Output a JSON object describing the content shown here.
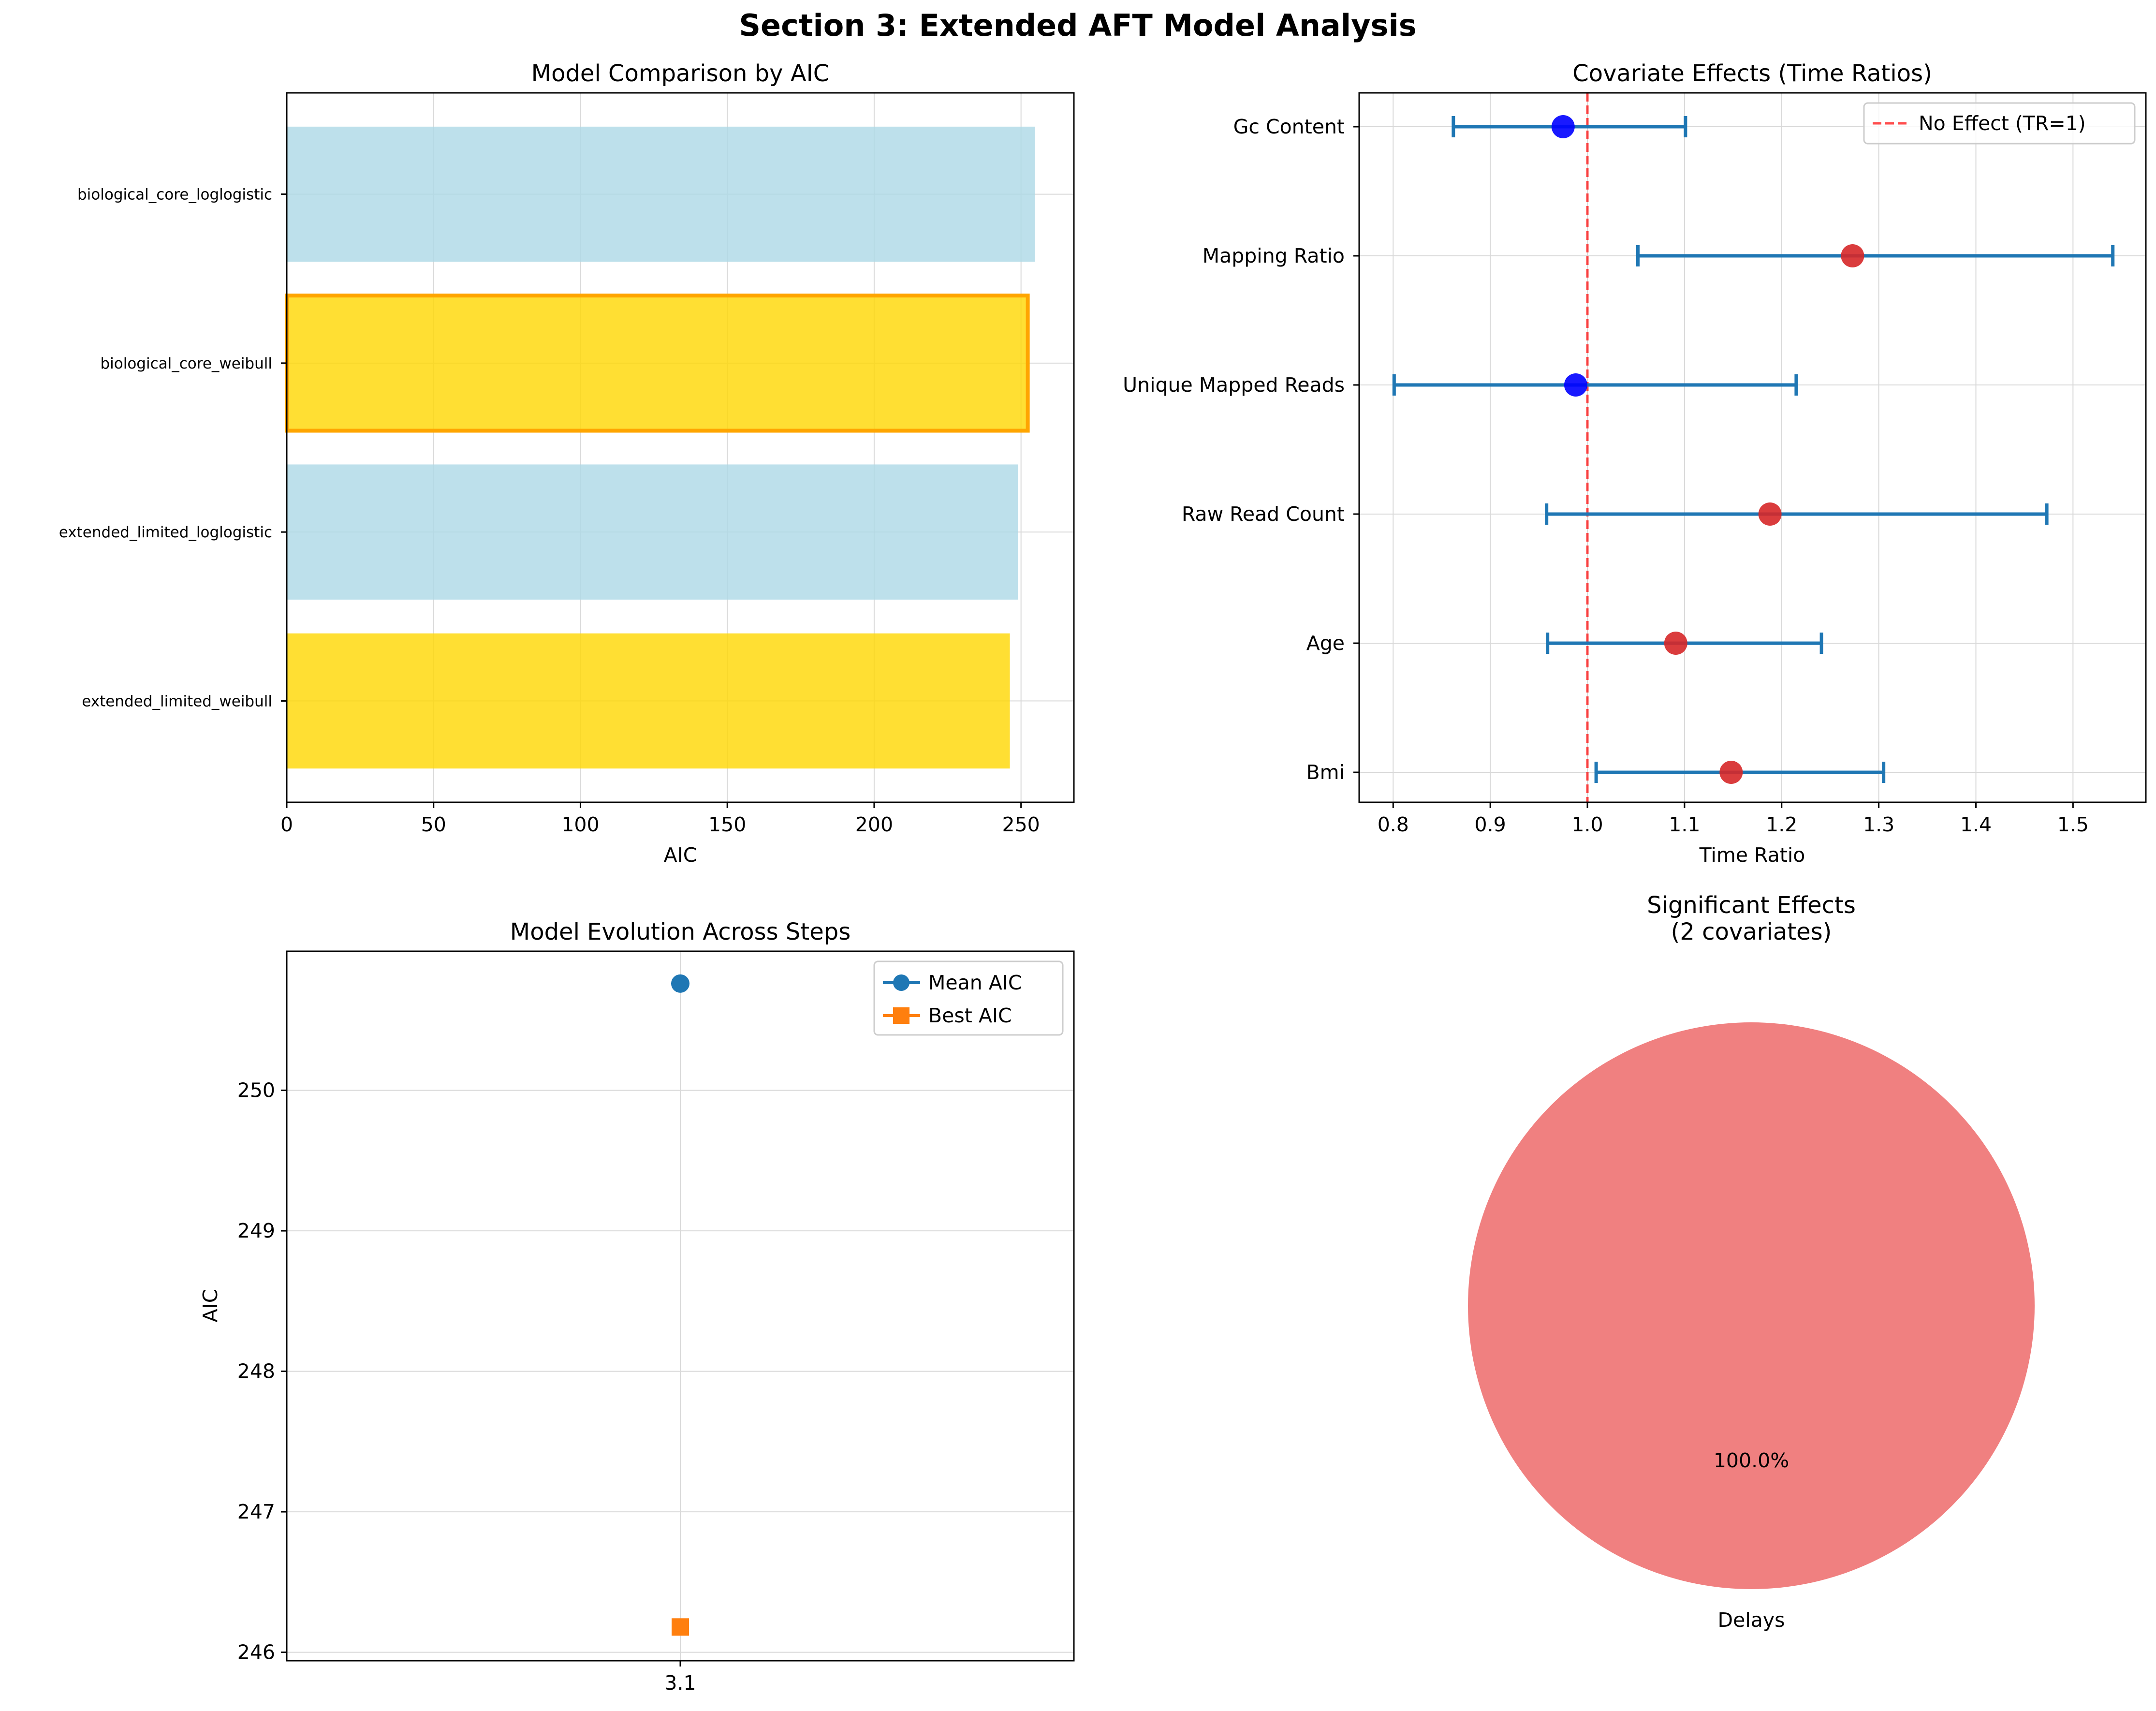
{
  "figure_title": "Section 3: Extended AFT Model Analysis",
  "colors": {
    "light_blue": "#add8e6",
    "gold": "#ffd700",
    "orange_edge": "#ffa500",
    "errorbar": "#1f77b4",
    "positive_point": "#d62728",
    "negative_point": "#0000ff",
    "null_line": "#ff0000",
    "mean_line": "#1f77b4",
    "best_line": "#ff7f0e",
    "pie": "#f08080",
    "grid": "#d9d9d9"
  },
  "chart_data": [
    {
      "type": "bar",
      "orientation": "horizontal",
      "title": "Model Comparison by AIC",
      "xlabel": "AIC",
      "ylabel": "",
      "xlim": [
        0,
        268
      ],
      "xticks": [
        0,
        50,
        100,
        150,
        200,
        250
      ],
      "grid": true,
      "categories": [
        "biological_core_loglogistic",
        "biological_core_weibull",
        "extended_limited_loglogistic",
        "extended_limited_weibull"
      ],
      "values": [
        254.7,
        252.3,
        248.9,
        246.2
      ],
      "bar_colors": [
        "light_blue",
        "gold",
        "light_blue",
        "gold"
      ],
      "highlighted": [
        false,
        true,
        false,
        false
      ]
    },
    {
      "type": "scatter",
      "subtype": "forest",
      "title": "Covariate Effects (Time Ratios)",
      "xlabel": "Time Ratio",
      "ylabel": "",
      "xlim": [
        0.765,
        1.575
      ],
      "xticks": [
        0.8,
        0.9,
        1.0,
        1.1,
        1.2,
        1.3,
        1.4,
        1.5
      ],
      "grid": true,
      "legend": {
        "position": "top-right",
        "entries": [
          "No Effect (TR=1)"
        ]
      },
      "reference_line": 1.0,
      "categories": [
        "Gc Content",
        "Mapping Ratio",
        "Unique Mapped Reads",
        "Raw Read Count",
        "Age",
        "Bmi"
      ],
      "estimates": [
        0.975,
        1.273,
        0.988,
        1.188,
        1.091,
        1.148
      ],
      "ci_lower": [
        0.862,
        1.052,
        0.801,
        0.958,
        0.959,
        1.009
      ],
      "ci_upper": [
        1.101,
        1.541,
        1.215,
        1.473,
        1.241,
        1.305
      ]
    },
    {
      "type": "line",
      "title": "Model Evolution Across Steps",
      "xlabel": "",
      "ylabel": "AIC",
      "ylim": [
        245.94,
        250.99
      ],
      "yticks": [
        246,
        247,
        248,
        249,
        250
      ],
      "categories": [
        "3.1"
      ],
      "grid": true,
      "legend": {
        "position": "top-right"
      },
      "series": [
        {
          "name": "Mean AIC",
          "values": [
            250.76
          ],
          "marker": "circle",
          "color": "mean_line"
        },
        {
          "name": "Best AIC",
          "values": [
            246.18
          ],
          "marker": "square",
          "color": "best_line"
        }
      ]
    },
    {
      "type": "pie",
      "title_lines": [
        "Significant Effects",
        "(2 covariates)"
      ],
      "labels": [
        "Delays"
      ],
      "values": [
        100
      ],
      "pct_labels": [
        "100.0%"
      ],
      "colors": [
        "pie"
      ]
    }
  ]
}
